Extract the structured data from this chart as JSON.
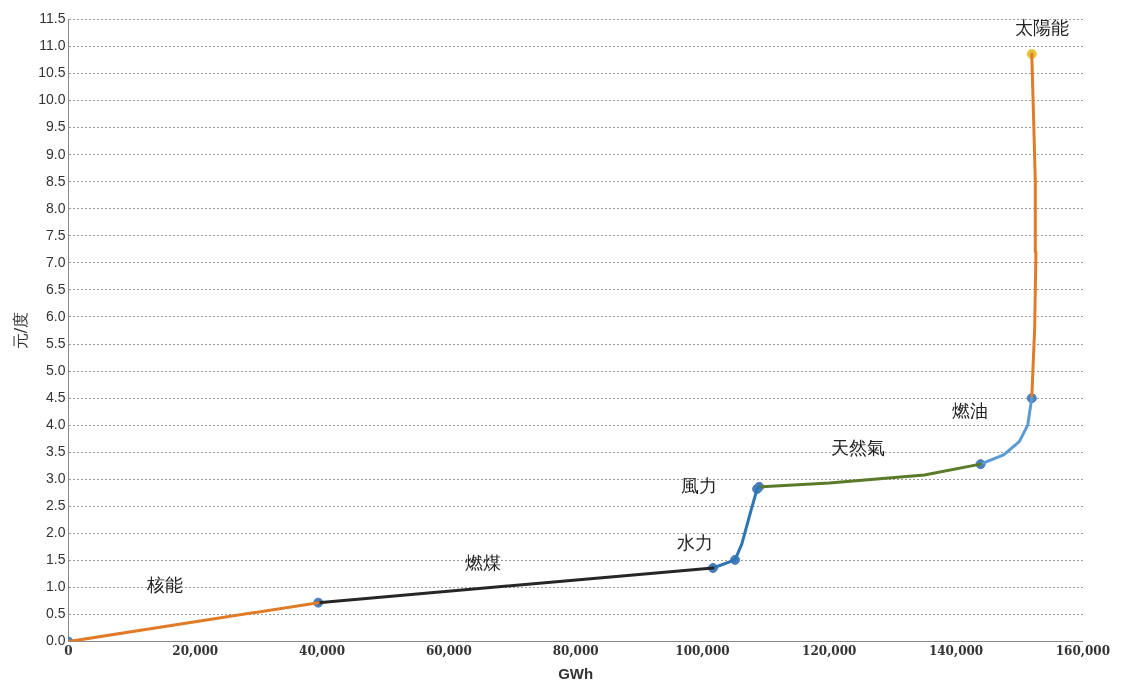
{
  "chart_data": {
    "type": "line",
    "xlabel": "GWh",
    "ylabel": "元/度",
    "xlim": [
      0,
      160000
    ],
    "ylim": [
      0,
      11.5
    ],
    "xticks": [
      {
        "value": 0,
        "label": "0"
      },
      {
        "value": 20000,
        "label": "20,000"
      },
      {
        "value": 40000,
        "label": "40,000"
      },
      {
        "value": 60000,
        "label": "60,000"
      },
      {
        "value": 80000,
        "label": "80,000"
      },
      {
        "value": 100000,
        "label": "100,000"
      },
      {
        "value": 120000,
        "label": "120,000"
      },
      {
        "value": 140000,
        "label": "140,000"
      },
      {
        "value": 160000,
        "label": "160,000"
      }
    ],
    "yticks": [
      {
        "value": 0,
        "label": "0.0"
      },
      0.5,
      {
        "value": 1,
        "label": "1.0"
      },
      1.5,
      {
        "value": 2,
        "label": "2.0"
      },
      2.5,
      {
        "value": 3,
        "label": "3.0"
      },
      3.5,
      {
        "value": 4,
        "label": "4.0"
      },
      4.5,
      {
        "value": 5,
        "label": "5.0"
      },
      5.5,
      {
        "value": 6,
        "label": "6.0"
      },
      6.5,
      {
        "value": 7,
        "label": "7.0"
      },
      7.5,
      {
        "value": 8,
        "label": "8.0"
      },
      8.5,
      {
        "value": 9,
        "label": "9.0"
      },
      9.5,
      {
        "value": 10,
        "label": "10.0"
      },
      10.5,
      {
        "value": 11,
        "label": "11.0"
      },
      11.5
    ],
    "grid": "y",
    "line_style": "solid",
    "marker": "none",
    "series": [
      {
        "name": "核能",
        "color": "#e07b28",
        "x": [
          0,
          39400
        ],
        "values": [
          0,
          0.72
        ]
      },
      {
        "name": "燃煤",
        "color": "#262626",
        "x": [
          39400,
          101660
        ],
        "values": [
          0.72,
          1.36
        ]
      },
      {
        "name": "水力",
        "color": "#2e75b6",
        "x": [
          101660,
          105140
        ],
        "values": [
          1.36,
          1.51
        ]
      },
      {
        "name": "風力",
        "color": "#2e75b6",
        "x": [
          105140,
          106200,
          107600,
          108620,
          108940
        ],
        "values": [
          1.51,
          1.8,
          2.4,
          2.82,
          2.86
        ]
      },
      {
        "name": "天然氣",
        "color": "#5a7a2a",
        "x": [
          108940,
          120000,
          135000,
          143870
        ],
        "values": [
          2.86,
          2.93,
          3.08,
          3.28
        ]
      },
      {
        "name": "燃油",
        "color": "#5b9bd5",
        "x": [
          143870,
          147500,
          150000,
          151300,
          151940
        ],
        "values": [
          3.28,
          3.45,
          3.7,
          4.0,
          4.5
        ]
      },
      {
        "name": "太陽能",
        "color": "#e07b28",
        "x": [
          151940,
          152400,
          152600,
          152500,
          152200,
          151940
        ],
        "values": [
          4.5,
          5.8,
          7.2,
          8.5,
          9.8,
          10.86
        ]
      },
      {
        "type": "scatter",
        "marker": "circle",
        "x": [
          0,
          39400,
          101660,
          105140,
          108620,
          108940,
          143870,
          151940,
          151940
        ],
        "values": [
          0,
          0.72,
          1.36,
          1.51,
          2.82,
          2.86,
          3.28,
          4.5,
          10.86
        ],
        "colors": [
          "#4a7ebb",
          "#4a7ebb",
          "#4a7ebb",
          "#4a7ebb",
          "#4a7ebb",
          "#4a7ebb",
          "#4a7ebb",
          "#4a7ebb",
          "#e8c33a"
        ]
      }
    ]
  }
}
